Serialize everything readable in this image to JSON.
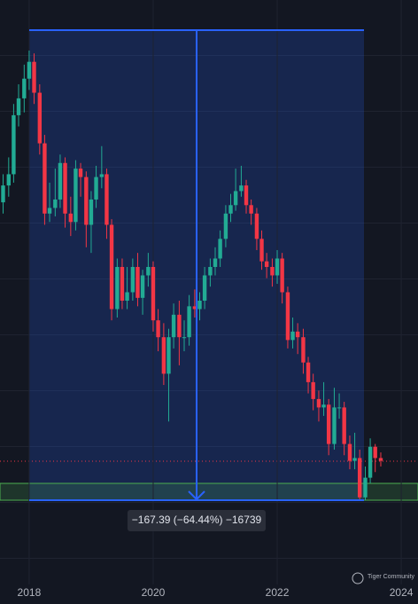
{
  "chart_data": {
    "type": "candlestick",
    "x": [
      2017.58,
      2017.67,
      2017.75,
      2017.83,
      2017.92,
      2018.0,
      2018.08,
      2018.17,
      2018.25,
      2018.33,
      2018.42,
      2018.5,
      2018.58,
      2018.67,
      2018.75,
      2018.83,
      2018.92,
      2019.0,
      2019.08,
      2019.17,
      2019.25,
      2019.33,
      2019.42,
      2019.5,
      2019.58,
      2019.67,
      2019.75,
      2019.83,
      2019.92,
      2020.0,
      2020.08,
      2020.17,
      2020.25,
      2020.33,
      2020.42,
      2020.5,
      2020.58,
      2020.67,
      2020.75,
      2020.83,
      2020.92,
      2021.0,
      2021.08,
      2021.17,
      2021.25,
      2021.33,
      2021.42,
      2021.5,
      2021.58,
      2021.67,
      2021.75,
      2021.83,
      2021.92,
      2022.0,
      2022.08,
      2022.17,
      2022.25,
      2022.33,
      2022.42,
      2022.5,
      2022.58,
      2022.67,
      2022.75,
      2022.83,
      2022.92,
      2023.0,
      2023.08,
      2023.17,
      2023.25,
      2023.33,
      2023.42,
      2023.5,
      2023.58,
      2023.67
    ],
    "ohlc": [
      [
        198,
        208,
        194,
        204
      ],
      [
        204,
        214,
        200,
        208
      ],
      [
        208,
        233,
        205,
        229
      ],
      [
        229,
        240,
        225,
        235
      ],
      [
        235,
        247,
        230,
        242
      ],
      [
        242,
        252,
        238,
        248
      ],
      [
        248,
        251,
        233,
        237
      ],
      [
        237,
        240,
        215,
        219
      ],
      [
        219,
        222,
        190,
        194
      ],
      [
        194,
        205,
        191,
        196
      ],
      [
        196,
        210,
        193,
        199
      ],
      [
        199,
        215,
        196,
        212
      ],
      [
        212,
        214,
        189,
        194
      ],
      [
        194,
        200,
        186,
        191
      ],
      [
        191,
        213,
        188,
        210
      ],
      [
        210,
        212,
        200,
        207
      ],
      [
        207,
        209,
        182,
        190
      ],
      [
        190,
        202,
        180,
        199
      ],
      [
        199,
        211,
        196,
        207
      ],
      [
        207,
        218,
        203,
        208
      ],
      [
        208,
        210,
        185,
        190
      ],
      [
        190,
        192,
        156,
        160
      ],
      [
        160,
        178,
        157,
        175
      ],
      [
        175,
        178,
        160,
        163
      ],
      [
        163,
        175,
        160,
        166
      ],
      [
        166,
        178,
        163,
        175
      ],
      [
        175,
        180,
        161,
        164
      ],
      [
        164,
        174,
        158,
        172
      ],
      [
        172,
        180,
        168,
        175
      ],
      [
        175,
        177,
        152,
        156
      ],
      [
        156,
        160,
        145,
        150
      ],
      [
        150,
        155,
        133,
        137
      ],
      [
        137,
        153,
        120,
        150
      ],
      [
        150,
        162,
        146,
        158
      ],
      [
        158,
        163,
        140,
        150
      ],
      [
        150,
        156,
        145,
        150
      ],
      [
        150,
        165,
        147,
        161
      ],
      [
        161,
        167,
        157,
        160
      ],
      [
        160,
        166,
        156,
        163
      ],
      [
        163,
        175,
        160,
        172
      ],
      [
        172,
        178,
        168,
        175
      ],
      [
        175,
        182,
        172,
        178
      ],
      [
        178,
        188,
        175,
        185
      ],
      [
        185,
        197,
        182,
        194
      ],
      [
        194,
        201,
        191,
        197
      ],
      [
        197,
        210,
        195,
        202
      ],
      [
        202,
        211,
        200,
        204
      ],
      [
        204,
        206,
        194,
        197
      ],
      [
        197,
        199,
        190,
        194
      ],
      [
        194,
        196,
        181,
        185
      ],
      [
        185,
        188,
        174,
        177
      ],
      [
        177,
        180,
        171,
        175
      ],
      [
        175,
        178,
        168,
        172
      ],
      [
        172,
        181,
        169,
        178
      ],
      [
        178,
        180,
        162,
        166
      ],
      [
        166,
        168,
        146,
        149
      ],
      [
        149,
        157,
        146,
        152
      ],
      [
        152,
        155,
        144,
        150
      ],
      [
        150,
        153,
        137,
        141
      ],
      [
        141,
        143,
        130,
        134
      ],
      [
        134,
        137,
        124,
        128
      ],
      [
        128,
        131,
        120,
        125
      ],
      [
        125,
        134,
        122,
        126
      ],
      [
        126,
        128,
        108,
        112
      ],
      [
        112,
        132,
        110,
        125
      ],
      [
        125,
        130,
        121,
        125
      ],
      [
        125,
        127,
        108,
        112
      ],
      [
        112,
        115,
        103,
        106
      ],
      [
        106,
        116,
        103,
        107
      ],
      [
        107,
        110,
        92,
        93
      ],
      [
        93,
        104,
        92,
        100
      ],
      [
        100,
        114,
        98,
        111
      ],
      [
        111,
        112,
        102,
        107
      ],
      [
        107,
        109,
        104,
        106
      ]
    ],
    "up_color": "#22ab94",
    "down_color": "#f23645",
    "xlim": [
      2017.53,
      2024.27
    ],
    "xticks": [
      2018,
      2020,
      2022,
      2024
    ],
    "ylim": [
      62,
      270
    ],
    "measure_label": "−167.39 (−64.44%) −16739",
    "watermark": "Tiger Community"
  }
}
